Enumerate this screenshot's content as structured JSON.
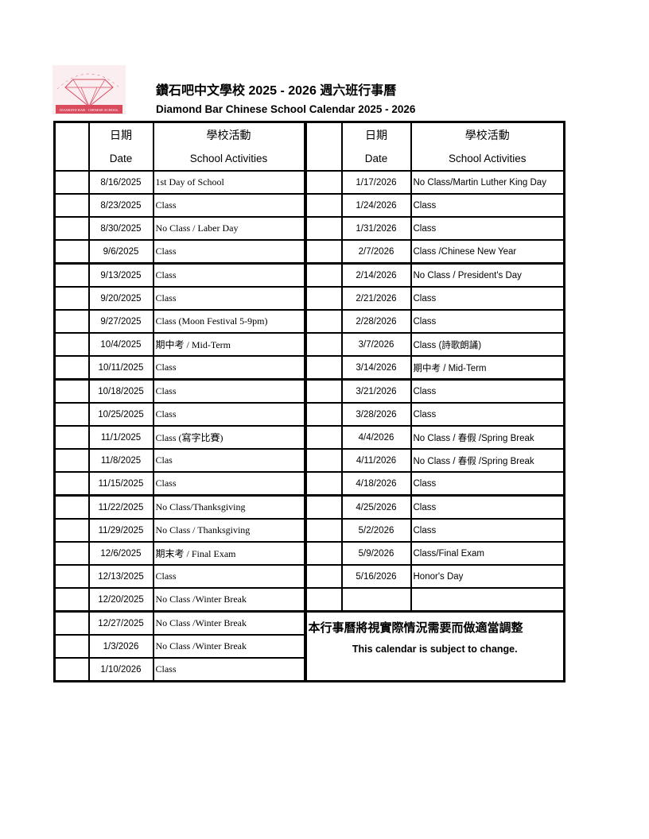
{
  "logo": {
    "text_en": "DIAMOND BAR CHINESE SCHOOL",
    "text_zh": "鑽石吧華協中文學校",
    "color": "#d94a5c"
  },
  "title_zh": "鑽石吧中文學校 2025 - 2026 週六班行事曆",
  "title_en": "Diamond Bar Chinese School Calendar 2025 - 2026",
  "headers": {
    "date_zh": "日期",
    "date_en": "Date",
    "activity_zh": "學校活動",
    "activity_en": "School Activities"
  },
  "left": [
    {
      "date": "8/16/2025",
      "activity": "1st Day of School"
    },
    {
      "date": "8/23/2025",
      "activity": "Class"
    },
    {
      "date": "8/30/2025",
      "activity": "No Class / Laber Day"
    },
    {
      "date": "9/6/2025",
      "activity": "Class"
    },
    {
      "date": "9/13/2025",
      "activity": "Class"
    },
    {
      "date": "9/20/2025",
      "activity": "Class"
    },
    {
      "date": "9/27/2025",
      "activity": "Class (Moon Festival 5-9pm)"
    },
    {
      "date": "10/4/2025",
      "activity": "期中考 / Mid-Term"
    },
    {
      "date": "10/11/2025",
      "activity": "Class"
    },
    {
      "date": "10/18/2025",
      "activity": "Class"
    },
    {
      "date": "10/25/2025",
      "activity": "Class"
    },
    {
      "date": "11/1/2025",
      "activity": "Class  (寫字比賽)"
    },
    {
      "date": "11/8/2025",
      "activity": "Clas"
    },
    {
      "date": "11/15/2025",
      "activity": "Class"
    },
    {
      "date": "11/22/2025",
      "activity": "No Class/Thanksgiving"
    },
    {
      "date": "11/29/2025",
      "activity": "No Class / Thanksgiving"
    },
    {
      "date": "12/6/2025",
      "activity": " 期末考 / Final Exam"
    },
    {
      "date": "12/13/2025",
      "activity": "Class"
    },
    {
      "date": "12/20/2025",
      "activity": "No Class /Winter Break"
    },
    {
      "date": "12/27/2025",
      "activity": "No Class /Winter Break"
    },
    {
      "date": "1/3/2026",
      "activity": "No Class /Winter Break"
    },
    {
      "date": "1/10/2026",
      "activity": "Class"
    }
  ],
  "right": [
    {
      "date": "1/17/2026",
      "activity": "No Class/Martin Luther King Day"
    },
    {
      "date": "1/24/2026",
      "activity": "Class"
    },
    {
      "date": "1/31/2026",
      "activity": "Class"
    },
    {
      "date": "2/7/2026",
      "activity": "Class /Chinese New Year"
    },
    {
      "date": "2/14/2026",
      "activity": "No Class / President's Day"
    },
    {
      "date": "2/21/2026",
      "activity": "Class"
    },
    {
      "date": "2/28/2026",
      "activity": "Class"
    },
    {
      "date": "3/7/2026",
      "activity": "Class  (詩歌朗誦)"
    },
    {
      "date": "3/14/2026",
      "activity": "期中考 / Mid-Term"
    },
    {
      "date": "3/21/2026",
      "activity": "Class"
    },
    {
      "date": "3/28/2026",
      "activity": "Class"
    },
    {
      "date": "4/4/2026",
      "activity": "No Class / 春假  /Spring Break"
    },
    {
      "date": "4/11/2026",
      "activity": "No Class / 春假  /Spring Break"
    },
    {
      "date": "4/18/2026",
      "activity": "Class"
    },
    {
      "date": "4/25/2026",
      "activity": "Class"
    },
    {
      "date": "5/2/2026",
      "activity": "Class"
    },
    {
      "date": "5/9/2026",
      "activity": "Class/Final Exam"
    },
    {
      "date": "5/16/2026",
      "activity": "Honor's Day"
    },
    {
      "date": "",
      "activity": ""
    }
  ],
  "note": {
    "zh": "本行事曆將視實際情況需要而做適當調整",
    "en": "This calendar is subject to change."
  }
}
